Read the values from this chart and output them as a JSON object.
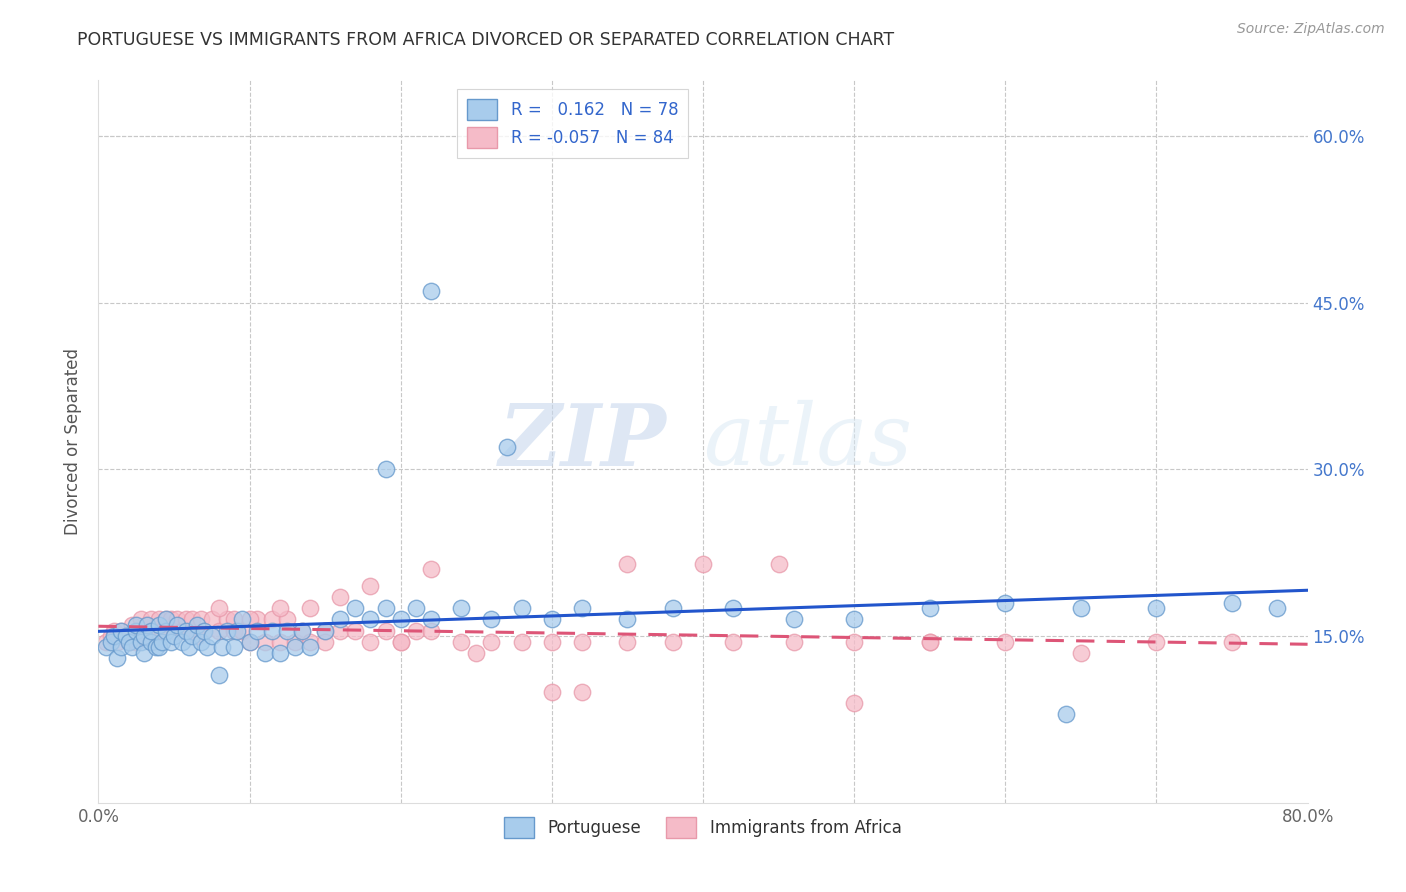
{
  "title": "PORTUGUESE VS IMMIGRANTS FROM AFRICA DIVORCED OR SEPARATED CORRELATION CHART",
  "source": "Source: ZipAtlas.com",
  "ylabel": "Divorced or Separated",
  "watermark_zip": "ZIP",
  "watermark_atlas": "atlas",
  "xlim": [
    0.0,
    0.8
  ],
  "ylim": [
    0.0,
    0.65
  ],
  "ytick_positions": [
    0.0,
    0.15,
    0.3,
    0.45,
    0.6
  ],
  "xtick_positions": [
    0.0,
    0.1,
    0.2,
    0.3,
    0.4,
    0.5,
    0.6,
    0.7,
    0.8
  ],
  "grid_color": "#c8c8c8",
  "background_color": "#ffffff",
  "blue_scatter_color": "#a8ccec",
  "blue_edge_color": "#6699cc",
  "pink_scatter_color": "#f5bbc8",
  "pink_edge_color": "#e899aa",
  "trend_blue": "#2255cc",
  "trend_pink": "#dd5577",
  "right_tick_color": "#4477cc",
  "R1": 0.162,
  "N1": 78,
  "R2": -0.057,
  "N2": 84,
  "blue_scatter_x": [
    0.005,
    0.008,
    0.01,
    0.012,
    0.015,
    0.015,
    0.018,
    0.02,
    0.022,
    0.025,
    0.025,
    0.028,
    0.03,
    0.03,
    0.032,
    0.035,
    0.035,
    0.038,
    0.04,
    0.04,
    0.042,
    0.045,
    0.045,
    0.048,
    0.05,
    0.052,
    0.055,
    0.058,
    0.06,
    0.062,
    0.065,
    0.068,
    0.07,
    0.072,
    0.075,
    0.08,
    0.082,
    0.085,
    0.09,
    0.092,
    0.095,
    0.1,
    0.105,
    0.11,
    0.115,
    0.12,
    0.125,
    0.13,
    0.135,
    0.14,
    0.15,
    0.16,
    0.17,
    0.18,
    0.19,
    0.2,
    0.21,
    0.22,
    0.24,
    0.26,
    0.28,
    0.3,
    0.32,
    0.35,
    0.38,
    0.42,
    0.46,
    0.5,
    0.55,
    0.6,
    0.65,
    0.7,
    0.75,
    0.78,
    0.22,
    0.27,
    0.19,
    0.64
  ],
  "blue_scatter_y": [
    0.14,
    0.145,
    0.15,
    0.13,
    0.14,
    0.155,
    0.15,
    0.145,
    0.14,
    0.155,
    0.16,
    0.145,
    0.135,
    0.15,
    0.16,
    0.145,
    0.155,
    0.14,
    0.14,
    0.16,
    0.145,
    0.155,
    0.165,
    0.145,
    0.15,
    0.16,
    0.145,
    0.155,
    0.14,
    0.15,
    0.16,
    0.145,
    0.155,
    0.14,
    0.15,
    0.115,
    0.14,
    0.155,
    0.14,
    0.155,
    0.165,
    0.145,
    0.155,
    0.135,
    0.155,
    0.135,
    0.155,
    0.14,
    0.155,
    0.14,
    0.155,
    0.165,
    0.175,
    0.165,
    0.175,
    0.165,
    0.175,
    0.165,
    0.175,
    0.165,
    0.175,
    0.165,
    0.175,
    0.165,
    0.175,
    0.175,
    0.165,
    0.165,
    0.175,
    0.18,
    0.175,
    0.175,
    0.18,
    0.175,
    0.46,
    0.32,
    0.3,
    0.08
  ],
  "pink_scatter_x": [
    0.005,
    0.008,
    0.01,
    0.012,
    0.015,
    0.018,
    0.02,
    0.022,
    0.025,
    0.025,
    0.028,
    0.03,
    0.032,
    0.035,
    0.035,
    0.038,
    0.04,
    0.042,
    0.045,
    0.048,
    0.05,
    0.052,
    0.055,
    0.058,
    0.06,
    0.062,
    0.065,
    0.068,
    0.07,
    0.075,
    0.08,
    0.085,
    0.09,
    0.095,
    0.1,
    0.105,
    0.11,
    0.115,
    0.12,
    0.125,
    0.13,
    0.135,
    0.14,
    0.15,
    0.16,
    0.17,
    0.18,
    0.19,
    0.2,
    0.21,
    0.22,
    0.24,
    0.26,
    0.28,
    0.3,
    0.32,
    0.35,
    0.38,
    0.42,
    0.46,
    0.5,
    0.55,
    0.6,
    0.65,
    0.7,
    0.75,
    0.08,
    0.09,
    0.1,
    0.12,
    0.14,
    0.16,
    0.18,
    0.22,
    0.3,
    0.4,
    0.5,
    0.55,
    0.45,
    0.35,
    0.25,
    0.2,
    0.15,
    0.32
  ],
  "pink_scatter_y": [
    0.145,
    0.15,
    0.155,
    0.145,
    0.155,
    0.15,
    0.145,
    0.16,
    0.145,
    0.155,
    0.165,
    0.15,
    0.16,
    0.145,
    0.165,
    0.155,
    0.165,
    0.155,
    0.165,
    0.165,
    0.155,
    0.165,
    0.155,
    0.165,
    0.155,
    0.165,
    0.15,
    0.165,
    0.155,
    0.165,
    0.155,
    0.165,
    0.155,
    0.155,
    0.145,
    0.165,
    0.145,
    0.165,
    0.145,
    0.165,
    0.145,
    0.155,
    0.145,
    0.155,
    0.155,
    0.155,
    0.145,
    0.155,
    0.145,
    0.155,
    0.155,
    0.145,
    0.145,
    0.145,
    0.145,
    0.145,
    0.145,
    0.145,
    0.145,
    0.145,
    0.145,
    0.145,
    0.145,
    0.135,
    0.145,
    0.145,
    0.175,
    0.165,
    0.165,
    0.175,
    0.175,
    0.185,
    0.195,
    0.21,
    0.1,
    0.215,
    0.09,
    0.145,
    0.215,
    0.215,
    0.135,
    0.145,
    0.145,
    0.1
  ]
}
